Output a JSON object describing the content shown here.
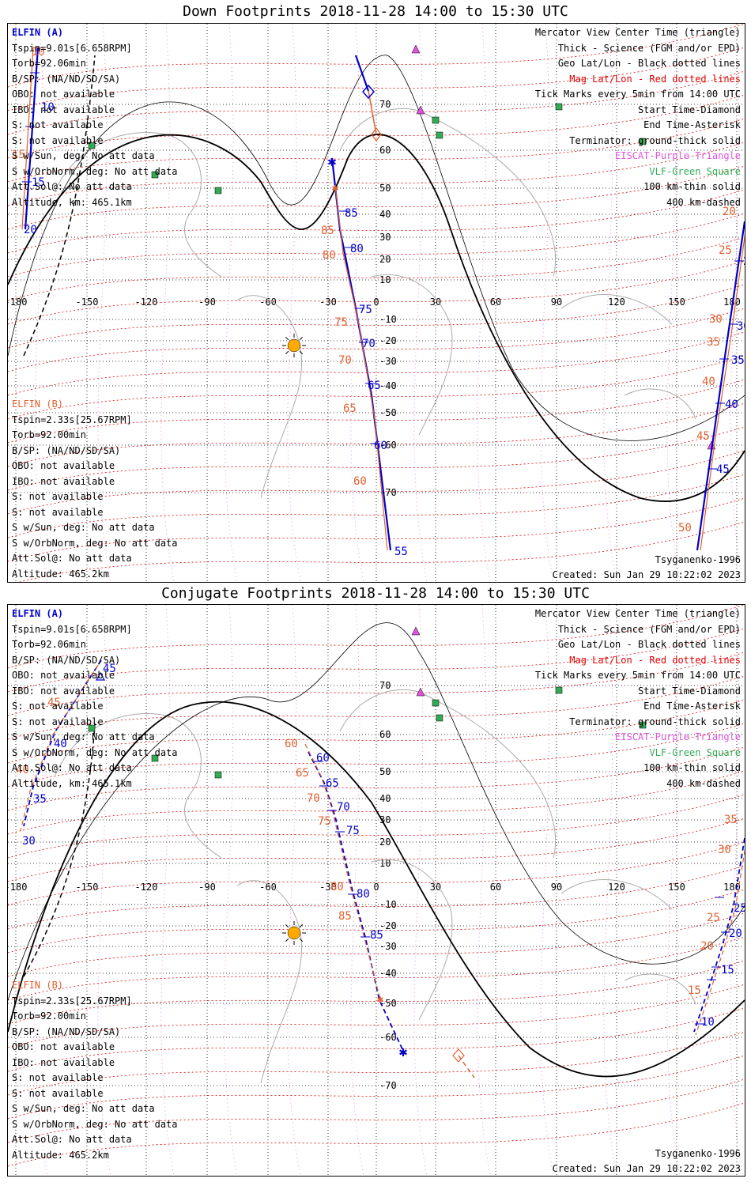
{
  "panels": [
    {
      "title": "Down Footprints 2018-11-28 14:00 to 15:30 UTC",
      "elfin_a": [
        "ELFIN (A)",
        "Tspin=9.01s[6.658RPM]",
        "Torb=92.06min",
        "B/SP: (NA/ND/SD/SA)",
        "OBO: not available",
        "IBO: not available",
        "S: not available",
        "S: not available",
        "S w/Sun, deg: No att data",
        "S w/OrbNorm, deg: No att data",
        "Att.Sol@: No att data",
        "Altitude, km: 465.1km"
      ],
      "elfin_b": [
        "ELFIN (B)",
        "Tspin=2.33s[25.67RPM]",
        "Torb=92.00min",
        "B/SP: (NA/ND/SD/SA)",
        "OBO: not available",
        "IBO: not available",
        "S: not available",
        "S: not available",
        "S w/Sun, deg: No att data",
        "S w/OrbNorm, deg: No att data",
        "Att.Sol@: No att data",
        "Altitude: 465.2km"
      ],
      "footer_left": "",
      "footer_right_model": "Tsyganenko-1996",
      "footer_created": "Created: Sun Jan 29 10:22:02 2023"
    },
    {
      "title": "Conjugate Footprints 2018-11-28 14:00 to 15:30 UTC",
      "elfin_a": [
        "ELFIN (A)",
        "Tspin=9.01s[6.658RPM]",
        "Torb=92.06min",
        "B/SP: (NA/ND/SD/SA)",
        "OBO: not available",
        "IBO: not available",
        "S: not available",
        "S: not available",
        "S w/Sun, deg: No att data",
        "S w/OrbNorm, deg: No att data",
        "Att.Sol@: No att data",
        "Altitude, km: 465.1km"
      ],
      "elfin_b": [
        "ELFIN (B)",
        "Tspin=2.33s[25.67RPM]",
        "Torb=92.00min",
        "B/SP: (NA/ND/SD/SA)",
        "OBO: not available",
        "IBO: not available",
        "S: not available",
        "S: not available",
        "S w/Sun, deg: No att data",
        "S w/OrbNorm, deg: No att data",
        "Att.Sol@: No att data",
        "Altitude: 465.2km"
      ],
      "footer_right_model": "Tsyganenko-1996",
      "footer_created": "Created: Sun Jan 29 10:22:02 2023"
    }
  ],
  "legend": [
    {
      "text": "Mercator View Center Time (triangle)",
      "color": "#000000"
    },
    {
      "text": "Thick - Science (FGM and/or EPD)",
      "color": "#000000"
    },
    {
      "text": "Geo Lat/Lon - Black dotted lines",
      "color": "#000000"
    },
    {
      "text": "Mag Lat/Lon - Red dotted lines",
      "color": "#dd0000"
    },
    {
      "text": "Tick Marks every 5min from 14:00 UTC",
      "color": "#000000"
    },
    {
      "text": "Start Time-Diamond",
      "color": "#000000"
    },
    {
      "text": "End Time-Asterisk",
      "color": "#000000"
    },
    {
      "text": "Terminator: ground-thick solid",
      "color": "#000000"
    },
    {
      "text": "EISCAT-Purple Triangle",
      "color": "#dd55dd"
    },
    {
      "text": "VLF-Green Square",
      "color": "#33aa55"
    },
    {
      "text": "100 km-thin solid",
      "color": "#000000"
    },
    {
      "text": "400 km-dashed",
      "color": "#000000"
    }
  ],
  "map": {
    "lon_labels": [
      "-180",
      "-150",
      "-120",
      "-90",
      "-60",
      "-30",
      "0",
      "30",
      "60",
      "90",
      "120",
      "150",
      "180"
    ],
    "lat_labels": [
      "70",
      "60",
      "50",
      "40",
      "30",
      "20",
      "10",
      "-10",
      "-20",
      "-30",
      "-40",
      "-50",
      "-60",
      "-70"
    ],
    "colors": {
      "elfin_a": "#0000cc",
      "elfin_b": "#e06030",
      "mag_grid": "#dd0000",
      "eiscat": "#dd55dd",
      "vlf": "#33aa55",
      "sun": "#ffaa00"
    }
  },
  "down_labels": {
    "a": [
      "10",
      "15",
      "20",
      "85",
      "80",
      "75",
      "70",
      "65",
      "60",
      "55",
      "25",
      "30",
      "35",
      "40",
      "45"
    ],
    "b": [
      "10",
      "15",
      "85",
      "80",
      "75",
      "70",
      "65",
      "60",
      "20",
      "25",
      "30",
      "35",
      "40",
      "45",
      "50"
    ]
  },
  "conj_labels": {
    "a": [
      "45",
      "40",
      "35",
      "30",
      "60",
      "65",
      "70",
      "75",
      "80",
      "85",
      "25",
      "20",
      "15",
      "10"
    ],
    "b": [
      "45",
      "40",
      "60",
      "65",
      "70",
      "75",
      "80",
      "85",
      "35",
      "30",
      "25",
      "20",
      "15"
    ]
  }
}
